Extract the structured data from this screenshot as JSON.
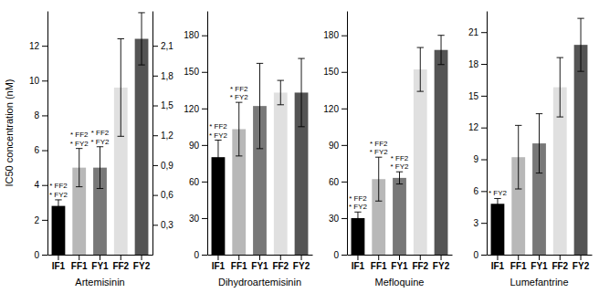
{
  "chart_data": [
    {
      "type": "bar",
      "xlabel": "Artemisinin",
      "ylabel": "IC50 concentration (nM)",
      "categories": [
        "IF1",
        "FF1",
        "FY1",
        "FF2",
        "FY2"
      ],
      "values": [
        2.8,
        5.0,
        5.0,
        9.6,
        12.4
      ],
      "errors": [
        0.35,
        1.1,
        1.2,
        2.8,
        1.5
      ],
      "colors": [
        "#000000",
        "#b8b8b8",
        "#787878",
        "#e0e0e0",
        "#545454"
      ],
      "ylim": [
        0,
        14
      ],
      "yticks": [
        0,
        2,
        4,
        6,
        8,
        10,
        12
      ],
      "y2lim": [
        0,
        2.45
      ],
      "y2ticks": [
        {
          "value": 0.3,
          "label": "0,3"
        },
        {
          "value": 0.6,
          "label": "0,6"
        },
        {
          "value": 0.9,
          "label": "0,9"
        },
        {
          "value": 1.2,
          "label": "1,2"
        },
        {
          "value": 1.5,
          "label": "1,5"
        },
        {
          "value": 1.8,
          "label": "1,8"
        },
        {
          "value": 2.1,
          "label": "2,1"
        }
      ],
      "annotations": [
        {
          "category": "IF1",
          "text": "* FF2\n* FY2"
        },
        {
          "category": "FF1",
          "text": "* FF2\n* FY2"
        },
        {
          "category": "FY1",
          "text": "* FF2\n* FY2"
        }
      ],
      "grid": false
    },
    {
      "type": "bar",
      "xlabel": "Dihydroartemisinin",
      "categories": [
        "IF1",
        "FF1",
        "FY1",
        "FF2",
        "FY2"
      ],
      "values": [
        80,
        103,
        122,
        133,
        133
      ],
      "errors": [
        14,
        22,
        35,
        10,
        28
      ],
      "colors": [
        "#000000",
        "#b8b8b8",
        "#787878",
        "#e0e0e0",
        "#545454"
      ],
      "ylim": [
        0,
        200
      ],
      "yticks": [
        0,
        30,
        60,
        90,
        120,
        150,
        180
      ],
      "annotations": [
        {
          "category": "IF1",
          "text": "* FF2\n* FY2"
        },
        {
          "category": "FF1",
          "text": "* FF2\n* FY2"
        }
      ],
      "grid": false
    },
    {
      "type": "bar",
      "xlabel": "Mefloquine",
      "categories": [
        "IF1",
        "FF1",
        "FY1",
        "FF2",
        "FY2"
      ],
      "values": [
        30,
        62,
        63,
        152,
        168
      ],
      "errors": [
        5,
        18,
        5,
        18,
        12
      ],
      "colors": [
        "#000000",
        "#b8b8b8",
        "#787878",
        "#e0e0e0",
        "#545454"
      ],
      "ylim": [
        0,
        200
      ],
      "yticks": [
        0,
        30,
        60,
        90,
        120,
        150,
        180
      ],
      "annotations": [
        {
          "category": "IF1",
          "text": "* FF2\n* FY2"
        },
        {
          "category": "FF1",
          "text": "* FF2\n* FY2"
        },
        {
          "category": "FY1",
          "text": "* FF2\n* FY2"
        }
      ],
      "grid": false
    },
    {
      "type": "bar",
      "xlabel": "Lumefantrine",
      "categories": [
        "IF1",
        "FF1",
        "FY1",
        "FF2",
        "FY2"
      ],
      "values": [
        4.8,
        9.2,
        10.5,
        15.8,
        19.8
      ],
      "errors": [
        0.5,
        3.0,
        2.8,
        2.8,
        2.5
      ],
      "colors": [
        "#000000",
        "#b8b8b8",
        "#787878",
        "#e0e0e0",
        "#545454"
      ],
      "ylim": [
        0,
        23
      ],
      "yticks": [
        0,
        3,
        6,
        9,
        12,
        15,
        18,
        21
      ],
      "annotations": [
        {
          "category": "IF1",
          "text": "* FY2"
        }
      ],
      "grid": false
    }
  ]
}
